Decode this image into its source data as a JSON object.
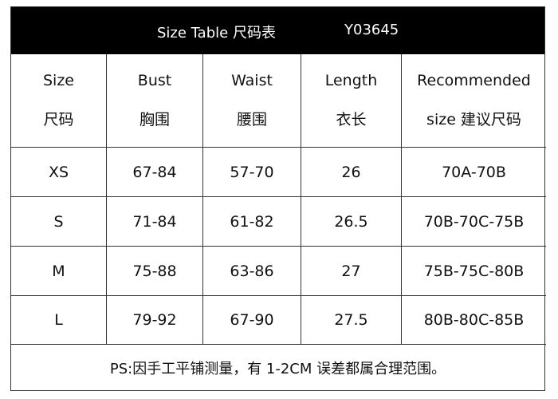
{
  "title": {
    "text": "Size Table 尺码表",
    "code": "Y03645"
  },
  "columns": [
    {
      "en": "Size",
      "zh": "尺码"
    },
    {
      "en": "Bust",
      "zh": "胸围"
    },
    {
      "en": "Waist",
      "zh": "腰围"
    },
    {
      "en": "Length",
      "zh": "衣长"
    },
    {
      "en": "Recommended",
      "zh": "size 建议尺码"
    }
  ],
  "rows": [
    [
      "XS",
      "67-84",
      "57-70",
      "26",
      "70A-70B"
    ],
    [
      "S",
      "71-84",
      "61-82",
      "26.5",
      "70B-70C-75B"
    ],
    [
      "M",
      "75-88",
      "63-86",
      "27",
      "75B-75C-80B"
    ],
    [
      "L",
      "79-92",
      "67-90",
      "27.5",
      "80B-80C-85B"
    ]
  ],
  "note": "PS:因手工平铺测量，有 1-2CM 误差都属合理范围。"
}
